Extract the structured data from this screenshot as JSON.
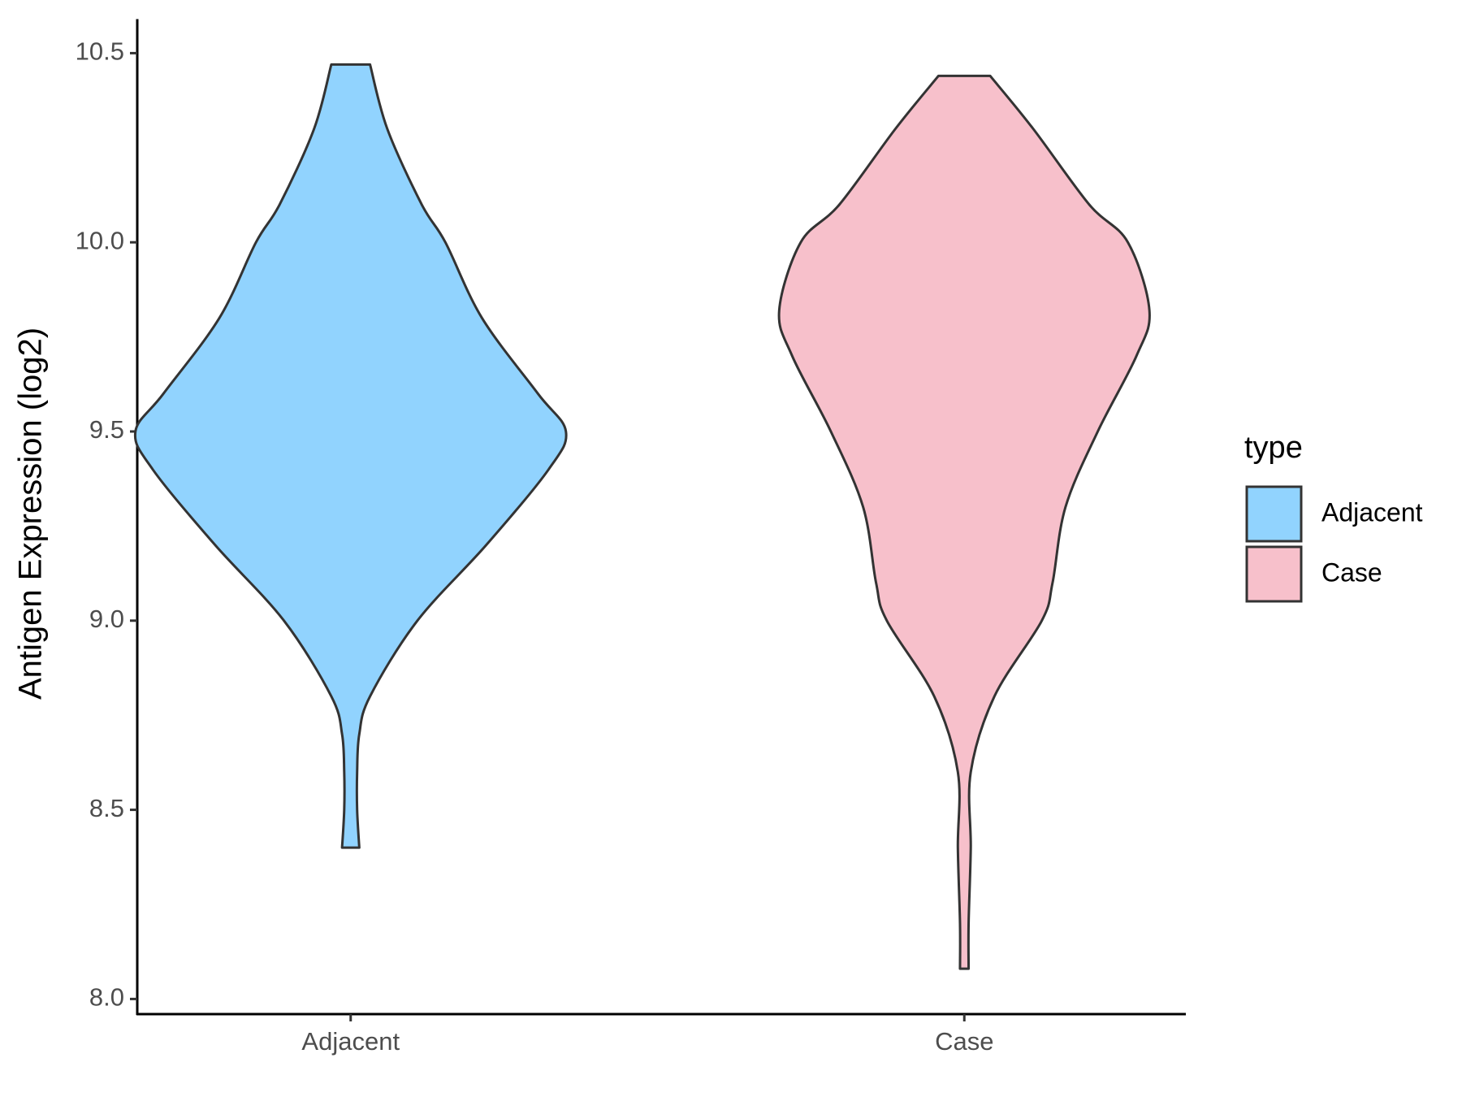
{
  "chart_data": {
    "type": "violin",
    "y_label": "Antigen Expression (log2)",
    "categories": [
      "Adjacent",
      "Case"
    ],
    "ylim": [
      7.96,
      10.59
    ],
    "yticks": [
      {
        "value": 8,
        "label": "8.0"
      },
      8.5,
      {
        "value": 9,
        "label": "9.0"
      },
      9.5,
      {
        "value": 10,
        "label": "10.0"
      },
      10.5
    ],
    "legend_title": "type",
    "legend_position": "right",
    "series": [
      {
        "name": "Adjacent",
        "color": "#91d3fe",
        "y": [
          10.47,
          10.3,
          10.1,
          10.0,
          9.8,
          9.6,
          9.5,
          9.4,
          9.2,
          9.0,
          8.8,
          8.7,
          8.6,
          8.5,
          8.4
        ],
        "density": [
          0.09,
          0.17,
          0.33,
          0.44,
          0.61,
          0.87,
          1.0,
          0.92,
          0.63,
          0.31,
          0.09,
          0.04,
          0.03,
          0.03,
          0.04
        ]
      },
      {
        "name": "Case",
        "color": "#f7c0cb",
        "y": [
          10.44,
          10.3,
          10.1,
          10.0,
          9.82,
          9.7,
          9.5,
          9.3,
          9.1,
          9.0,
          8.8,
          8.6,
          8.4,
          8.2,
          8.08
        ],
        "density": [
          0.12,
          0.32,
          0.58,
          0.76,
          0.86,
          0.8,
          0.62,
          0.47,
          0.41,
          0.36,
          0.14,
          0.03,
          0.03,
          0.02,
          0.02
        ]
      }
    ]
  }
}
